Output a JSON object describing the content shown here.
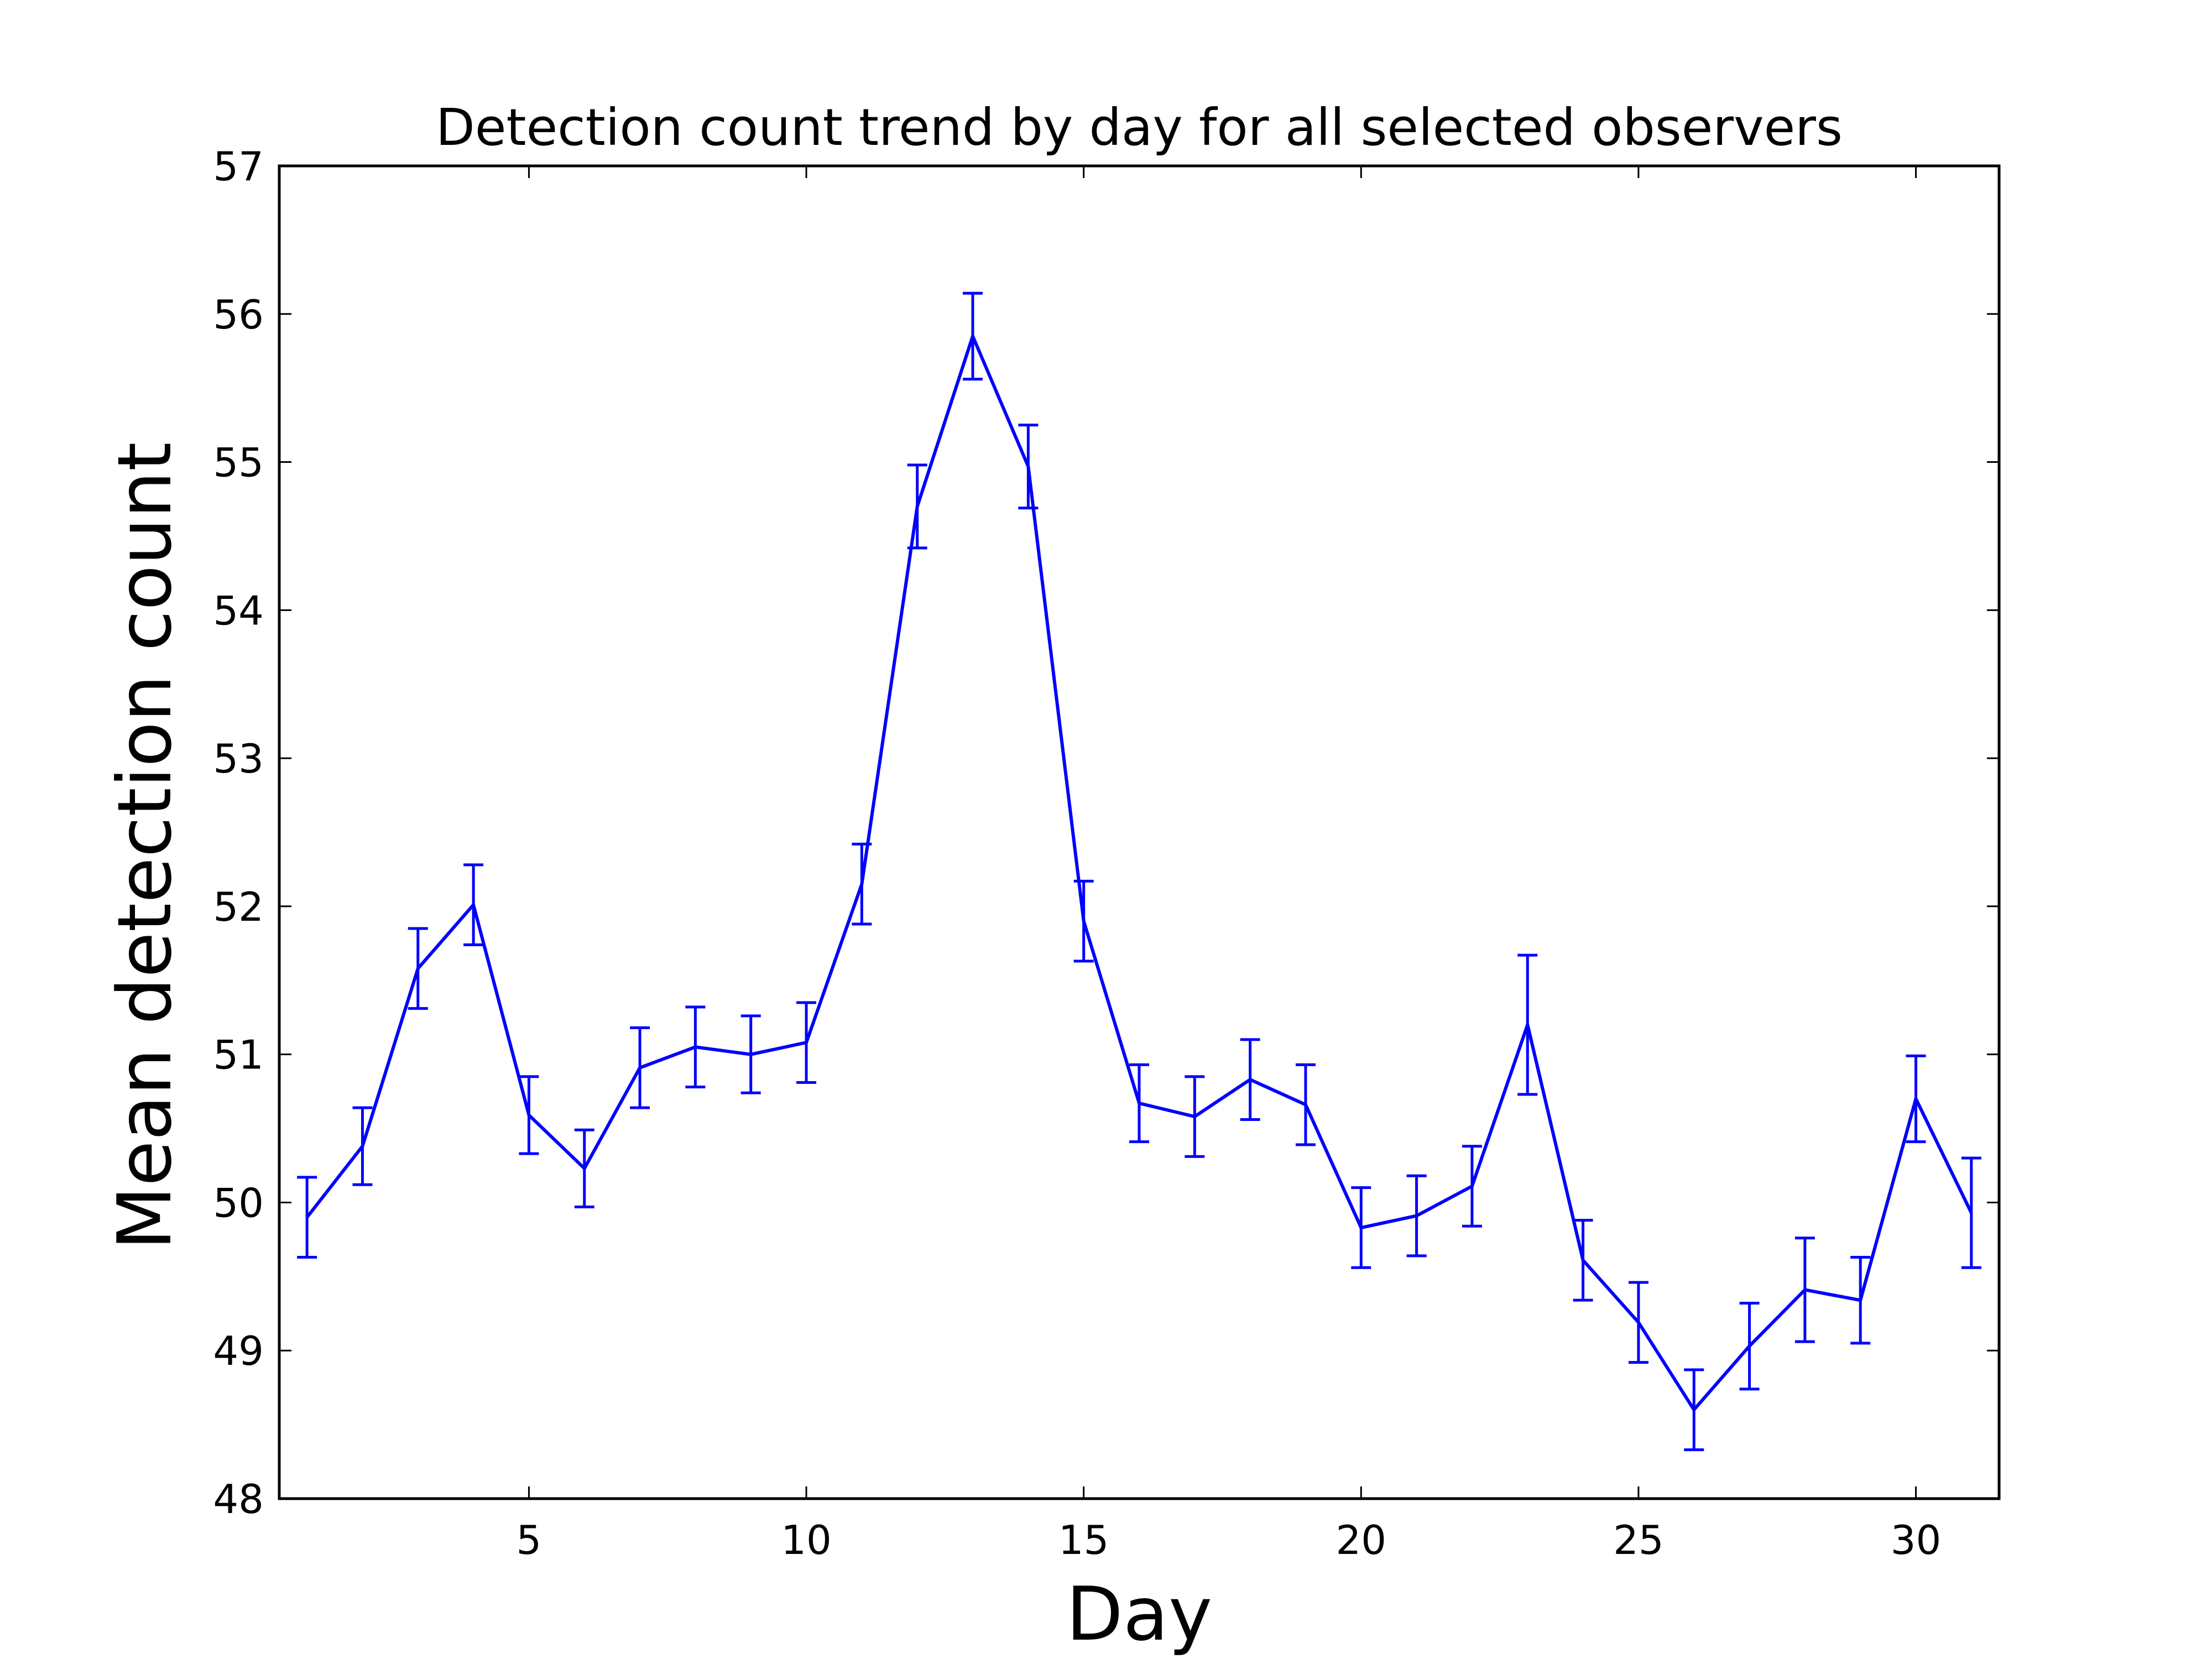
{
  "chart_data": {
    "type": "line",
    "title": "Detection count trend by day for all selected observers",
    "xlabel": "Day",
    "ylabel": "Mean detection count",
    "xlim": [
      0.5,
      31.5
    ],
    "ylim": [
      48,
      57
    ],
    "xticks": [
      5,
      10,
      15,
      20,
      25,
      30
    ],
    "yticks": [
      48,
      49,
      50,
      51,
      52,
      53,
      54,
      55,
      56,
      57
    ],
    "grid": false,
    "legend": "none",
    "series": [
      {
        "color": "#0000ff",
        "x": [
          1,
          2,
          3,
          4,
          5,
          6,
          7,
          8,
          9,
          10,
          11,
          12,
          13,
          14,
          15,
          16,
          17,
          18,
          19,
          20,
          21,
          22,
          23,
          24,
          25,
          26,
          27,
          28,
          29,
          30,
          31
        ],
        "y": [
          49.9,
          50.38,
          51.58,
          52.01,
          50.59,
          50.23,
          50.91,
          51.05,
          51.0,
          51.08,
          52.15,
          54.7,
          55.85,
          54.97,
          51.9,
          50.67,
          50.58,
          50.83,
          50.66,
          49.83,
          49.91,
          50.11,
          51.2,
          49.61,
          49.19,
          48.6,
          49.03,
          49.41,
          49.34,
          50.7,
          49.93
        ],
        "err": [
          0.27,
          0.26,
          0.27,
          0.27,
          0.26,
          0.26,
          0.27,
          0.27,
          0.26,
          0.27,
          0.27,
          0.28,
          0.29,
          0.28,
          0.27,
          0.26,
          0.27,
          0.27,
          0.27,
          0.27,
          0.27,
          0.27,
          0.47,
          0.27,
          0.27,
          0.27,
          0.29,
          0.35,
          0.29,
          0.29,
          0.37
        ]
      }
    ]
  }
}
